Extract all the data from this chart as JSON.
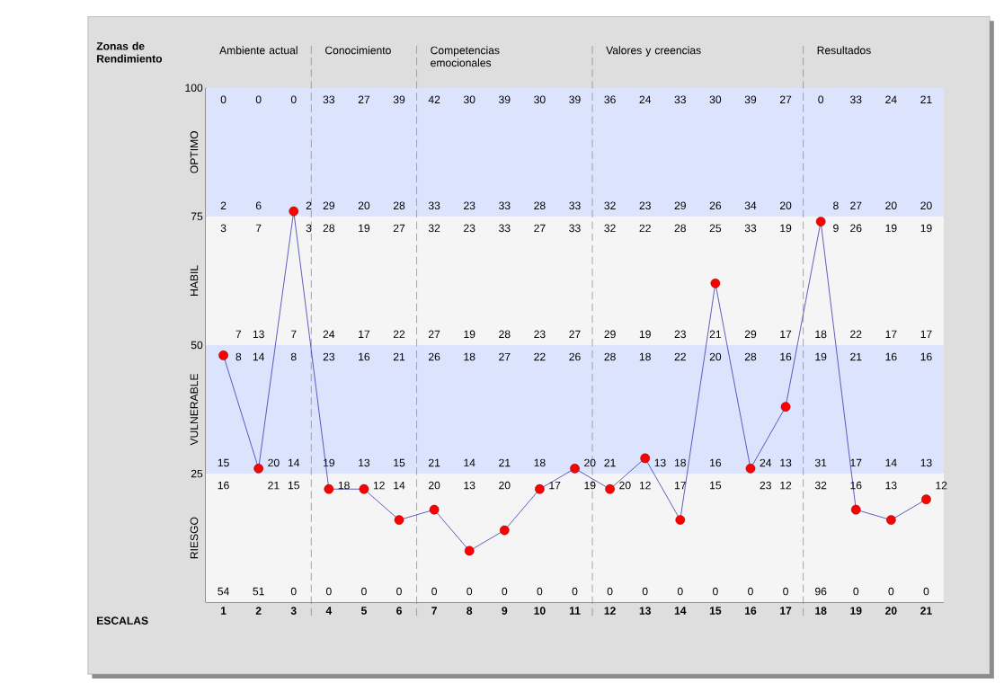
{
  "chart_data": {
    "type": "line",
    "xlabel": "ESCALAS",
    "ylabel": "Zonas de Rendimiento",
    "x": [
      1,
      2,
      3,
      4,
      5,
      6,
      7,
      8,
      9,
      10,
      11,
      12,
      13,
      14,
      15,
      16,
      17,
      18,
      19,
      20,
      21
    ],
    "xlim": [
      0.5,
      21.5
    ],
    "xticks": [
      1,
      2,
      3,
      4,
      5,
      6,
      7,
      8,
      9,
      10,
      11,
      12,
      13,
      14,
      15,
      16,
      17,
      18,
      19,
      20,
      21
    ],
    "ylim": [
      0,
      100
    ],
    "yticks": [
      25,
      50,
      75,
      100
    ],
    "marker": "circle",
    "line_style": "solid",
    "series": [
      {
        "color": "#2b2ba8",
        "colors": [
          "#ff0000",
          "#ff0000",
          "#ff0000",
          "#ff0000",
          "#ff0000",
          "#ff0000",
          "#ff0000",
          "#ff0000",
          "#ff0000",
          "#ff0000",
          "#ff0000",
          "#ff0000",
          "#ff0000",
          "#ff0000",
          "#ff0000",
          "#ff0000",
          "#ff0000",
          "#ff0000",
          "#ff0000",
          "#ff0000",
          "#ff0000"
        ],
        "values": [
          48,
          26,
          76,
          22,
          22,
          16,
          18,
          10,
          14,
          22,
          26,
          22,
          28,
          16,
          62,
          26,
          38,
          74,
          18,
          16,
          20
        ]
      }
    ],
    "bands": [
      {
        "axis": "y",
        "from": 75,
        "to": 100,
        "label": "OPTIMO",
        "color": "#dce3fd"
      },
      {
        "axis": "y",
        "from": 50,
        "to": 75,
        "label": "HABIL",
        "color": "#f5f5f5"
      },
      {
        "axis": "y",
        "from": 25,
        "to": 50,
        "label": "VULNERABLE",
        "color": "#dce3fd"
      },
      {
        "axis": "y",
        "from": 0,
        "to": 25,
        "label": "RIESGO",
        "color": "#f5f5f5"
      }
    ],
    "ref_lines": [
      {
        "axis": "x",
        "value": 3.5,
        "color": "#888888",
        "line_style": "dashed"
      },
      {
        "axis": "x",
        "value": 6.5,
        "color": "#888888",
        "line_style": "dashed"
      },
      {
        "axis": "x",
        "value": 11.5,
        "color": "#888888",
        "line_style": "dashed"
      },
      {
        "axis": "x",
        "value": 17.5,
        "color": "#888888",
        "line_style": "dashed"
      }
    ],
    "annotations": [
      "Ambiente actual",
      "Conocimiento",
      "Competencias emocionales",
      "Valores y creencias",
      "Resultados",
      "0",
      "0",
      "0",
      "33",
      "27",
      "39",
      "42",
      "30",
      "39",
      "30",
      "39",
      "36",
      "24",
      "33",
      "30",
      "39",
      "27",
      "0",
      "33",
      "24",
      "21",
      "2",
      "6",
      "2",
      "29",
      "20",
      "28",
      "33",
      "23",
      "33",
      "28",
      "33",
      "32",
      "23",
      "29",
      "26",
      "34",
      "20",
      "8",
      "27",
      "20",
      "20",
      "3",
      "7",
      "3",
      "28",
      "19",
      "27",
      "32",
      "23",
      "33",
      "27",
      "33",
      "32",
      "22",
      "28",
      "25",
      "33",
      "19",
      "9",
      "26",
      "19",
      "19",
      "7",
      "13",
      "7",
      "24",
      "17",
      "22",
      "27",
      "19",
      "28",
      "23",
      "27",
      "29",
      "19",
      "23",
      "21",
      "29",
      "17",
      "18",
      "22",
      "17",
      "17",
      "8",
      "14",
      "8",
      "23",
      "16",
      "21",
      "26",
      "18",
      "27",
      "22",
      "26",
      "28",
      "18",
      "22",
      "20",
      "28",
      "16",
      "19",
      "21",
      "16",
      "16",
      "15",
      "20",
      "14",
      "19",
      "13",
      "15",
      "21",
      "14",
      "21",
      "18",
      "20",
      "21",
      "13",
      "18",
      "16",
      "24",
      "13",
      "31",
      "17",
      "14",
      "13",
      "16",
      "21",
      "15",
      "18",
      "12",
      "14",
      "20",
      "13",
      "20",
      "17",
      "19",
      "20",
      "12",
      "17",
      "15",
      "23",
      "12",
      "32",
      "16",
      "13",
      "12",
      "54",
      "51",
      "0",
      "0",
      "0",
      "0",
      "0",
      "0",
      "0",
      "0",
      "0",
      "0",
      "0",
      "0",
      "0",
      "0",
      "0",
      "96",
      "0",
      "0",
      "0"
    ]
  }
}
